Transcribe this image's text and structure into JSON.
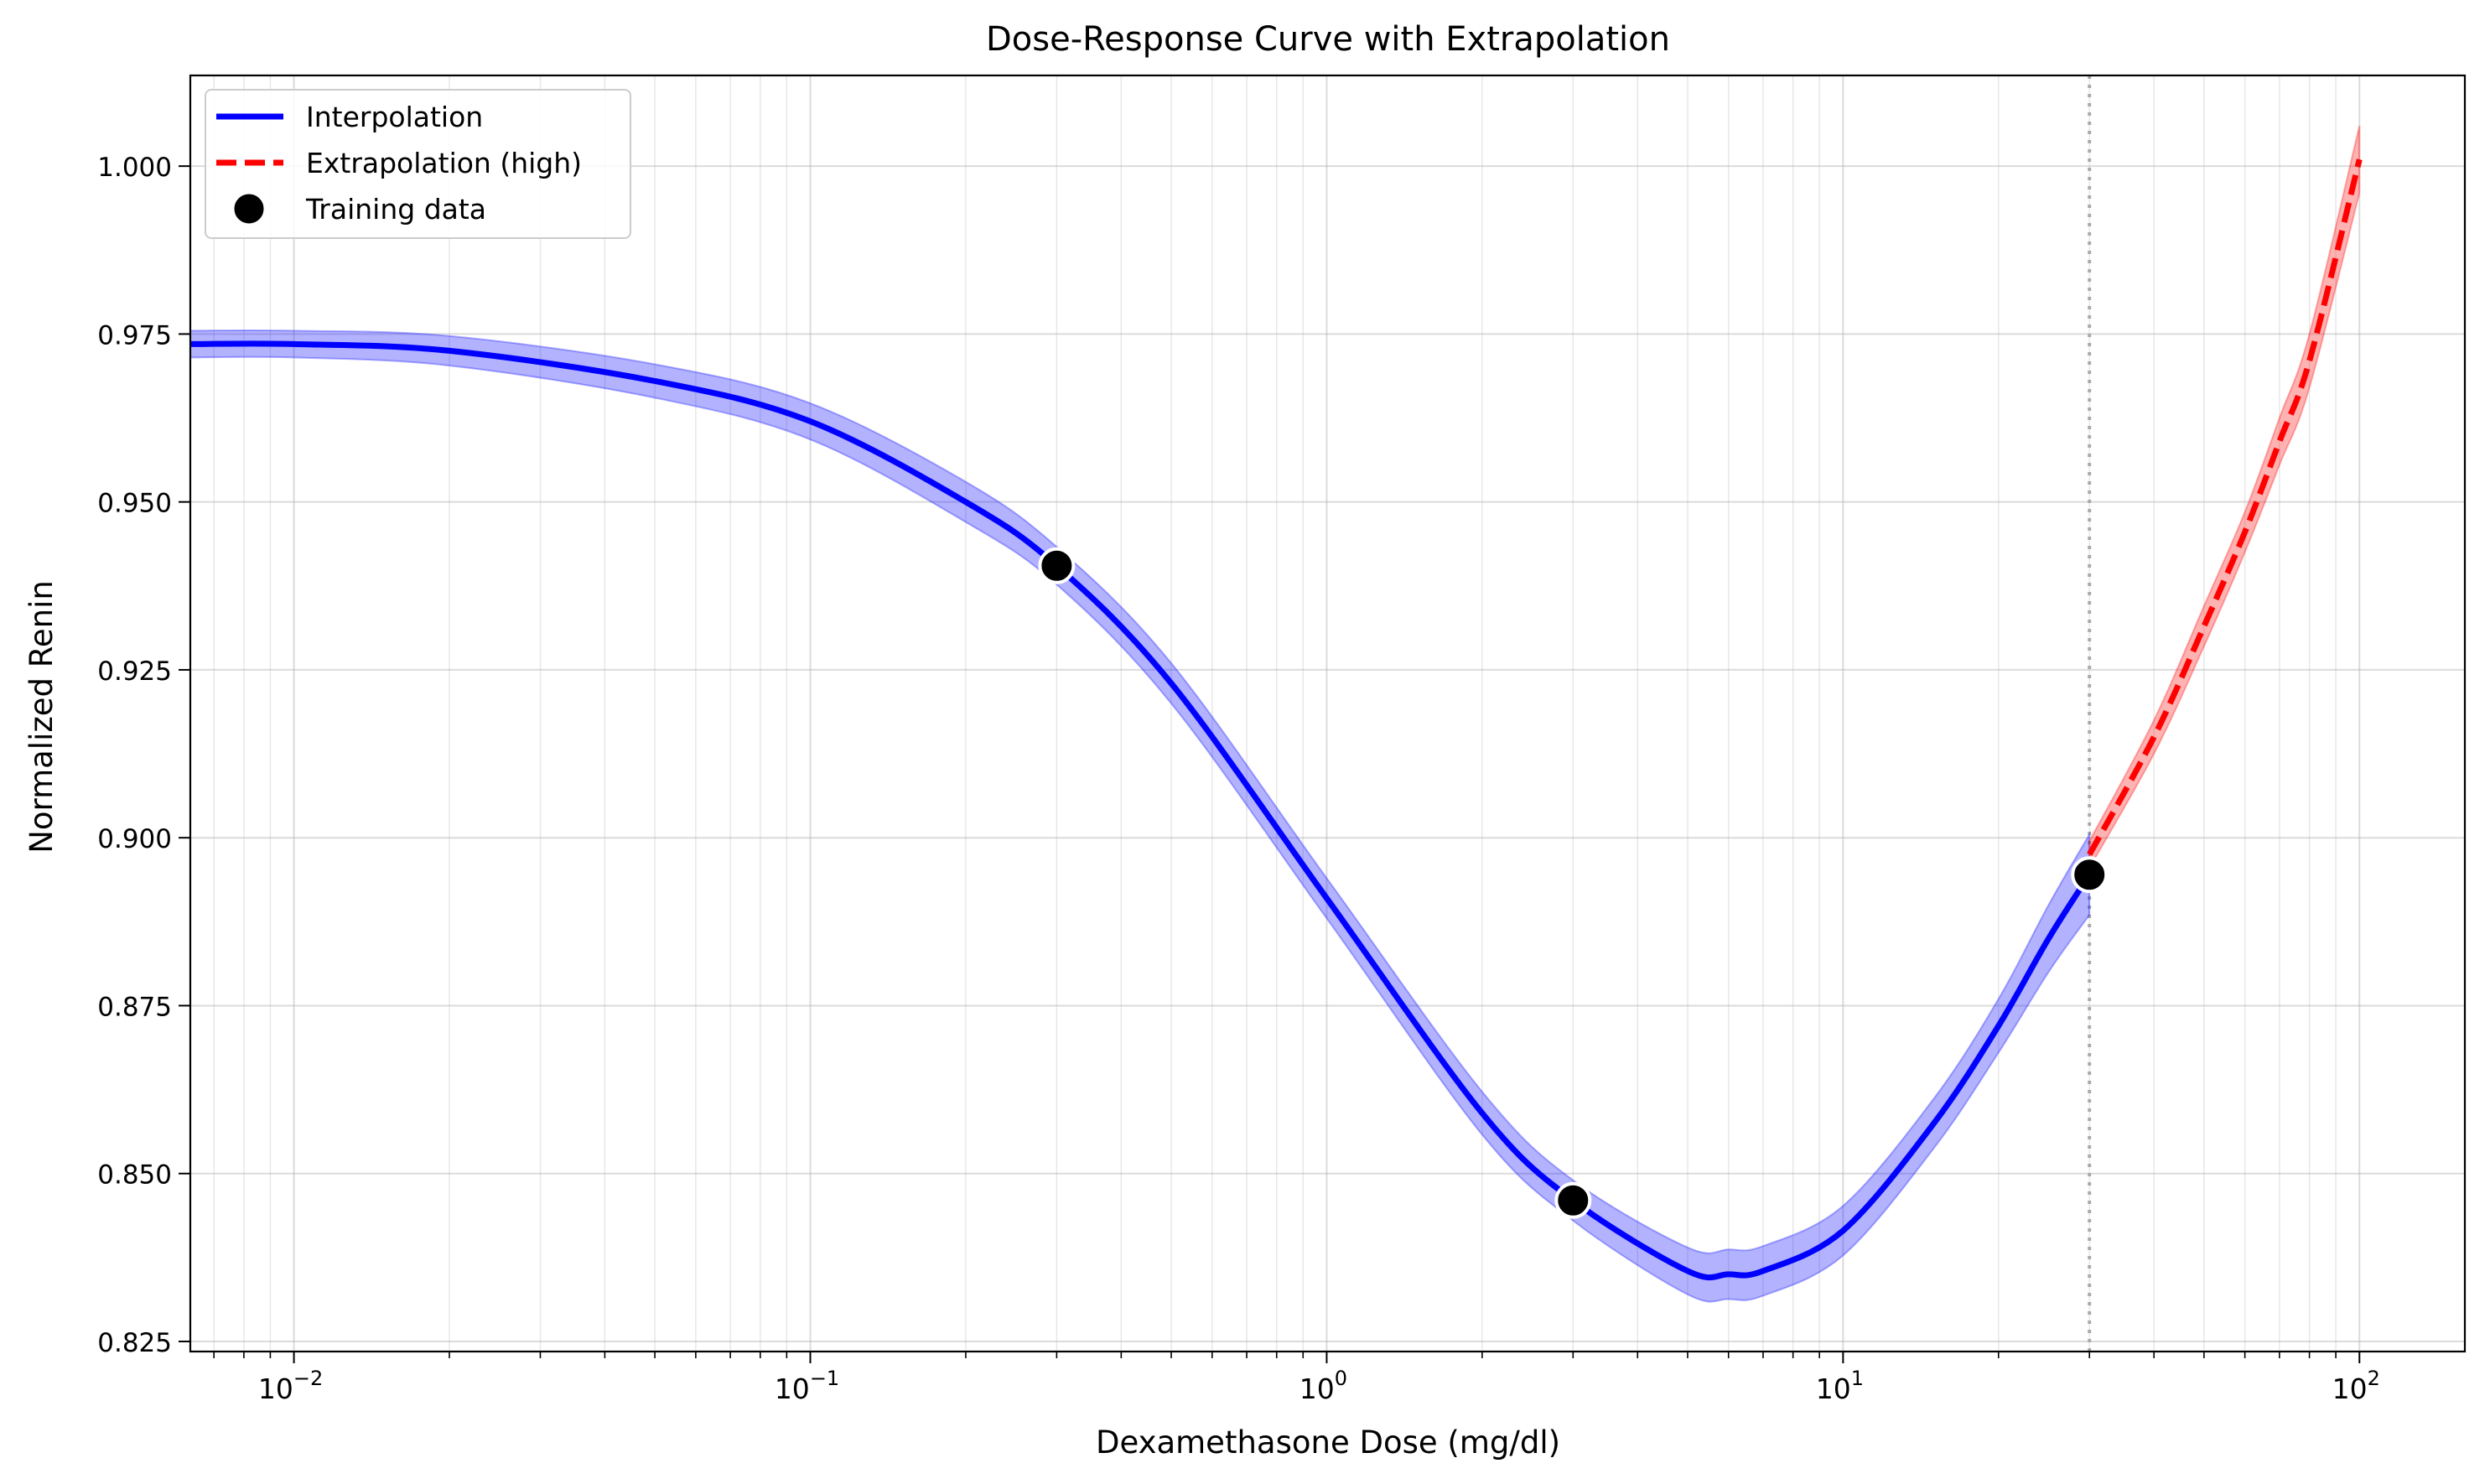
{
  "chart_data": {
    "type": "line",
    "title": "Dose-Response Curve with Extrapolation",
    "xlabel": "Dexamethasone Dose (mg/dl)",
    "ylabel": "Normalized Renin",
    "xscale": "log",
    "xlim": [
      0.0063,
      160
    ],
    "ylim": [
      0.8235,
      1.0135
    ],
    "x_ticks": [
      {
        "value": 0.01,
        "base": "10",
        "exp": "−2"
      },
      {
        "value": 0.1,
        "base": "10",
        "exp": "−1"
      },
      {
        "value": 1,
        "base": "10",
        "exp": "0"
      },
      {
        "value": 10,
        "base": "10",
        "exp": "1"
      },
      {
        "value": 100,
        "base": "10",
        "exp": "2"
      }
    ],
    "y_ticks": [
      {
        "value": 0.825,
        "label": "0.825"
      },
      {
        "value": 0.85,
        "label": "0.850"
      },
      {
        "value": 0.875,
        "label": "0.875"
      },
      {
        "value": 0.9,
        "label": "0.900"
      },
      {
        "value": 0.925,
        "label": "0.925"
      },
      {
        "value": 0.95,
        "label": "0.950"
      },
      {
        "value": 0.975,
        "label": "0.975"
      },
      {
        "value": 1.0,
        "label": "1.000"
      }
    ],
    "grid": true,
    "legend_position": "top-left",
    "colors": {
      "interpolation": "#0000ff",
      "extrapolation": "#ff0000",
      "training": "#000000",
      "boundary": "#aaaaaa"
    },
    "boundary_x": 30,
    "series": [
      {
        "name": "Interpolation",
        "style": "solid",
        "x": [
          0.0063,
          0.01,
          0.02,
          0.05,
          0.1,
          0.2,
          0.3,
          0.5,
          1,
          2,
          3,
          5,
          6,
          7,
          10,
          15,
          20,
          25,
          30
        ],
        "y": [
          0.9735,
          0.9735,
          0.9725,
          0.968,
          0.962,
          0.95,
          0.9405,
          0.923,
          0.891,
          0.859,
          0.846,
          0.8355,
          0.835,
          0.8355,
          0.8415,
          0.8575,
          0.872,
          0.885,
          0.8945
        ],
        "band": [
          0.002,
          0.002,
          0.0022,
          0.0025,
          0.0027,
          0.003,
          0.0028,
          0.003,
          0.003,
          0.0032,
          0.003,
          0.0035,
          0.0037,
          0.0037,
          0.0037,
          0.0037,
          0.004,
          0.005,
          0.006
        ]
      },
      {
        "name": "Extrapolation (high)",
        "style": "dashed",
        "x": [
          30,
          40,
          50,
          60,
          70,
          80,
          100
        ],
        "y": [
          0.8975,
          0.915,
          0.9315,
          0.9455,
          0.959,
          0.971,
          1.001
        ],
        "band": [
          0.002,
          0.0025,
          0.003,
          0.003,
          0.0035,
          0.004,
          0.005
        ]
      }
    ],
    "training_data": {
      "name": "Training data",
      "x": [
        0.3,
        3,
        30
      ],
      "y": [
        0.9405,
        0.846,
        0.8945
      ]
    }
  }
}
